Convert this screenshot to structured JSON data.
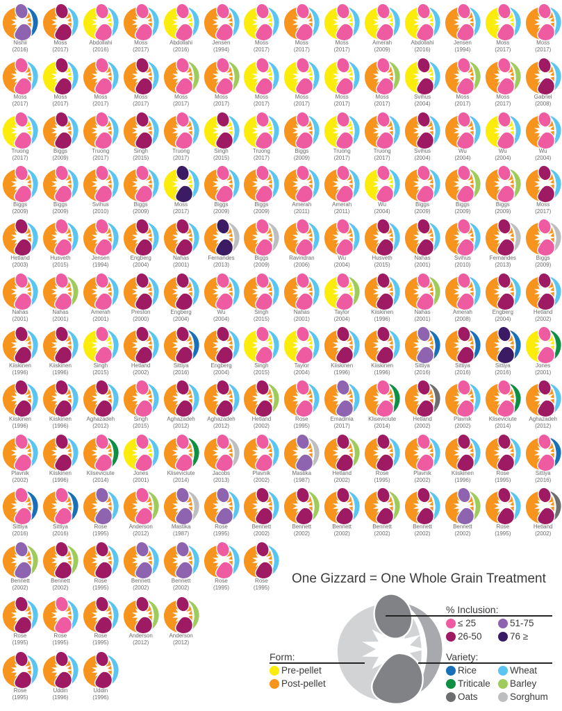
{
  "chart_data": {
    "type": "table",
    "title": "One Gizzard = One Whole Grain Treatment",
    "encoding": {
      "form": {
        "P": "Post-pellet",
        "R": "Pre-pellet"
      },
      "inclusion": {
        "1": "≤ 25",
        "2": "26-50",
        "3": "51-75",
        "4": "76 ≥"
      },
      "variety": {
        "w": "Wheat",
        "b": "Barley",
        "r": "Rice",
        "t": "Triticale",
        "o": "Oats",
        "s": "Sorghum"
      }
    },
    "rows": [
      [
        "Nishii|2016|P3r",
        "Moss|2017|P2w",
        "Abdollahi|2016|R1w",
        "Moss|2017|P1w",
        "Abdollahi|2016|R1w",
        "Jensen|1994|P1w",
        "Moss|2017|R1w",
        "Moss|2017|P1w",
        "Moss|2017|R1w",
        "Amerah|2009|R1w",
        "Abdollahi|2016|R1w",
        "Jensen|1994|P1w",
        "Moss|2017|R1w",
        "Moss|2017|P1w"
      ],
      [
        "Moss|2017|P1w",
        "Moss|2017|R2w",
        "Moss|2017|P1w",
        "Moss|2017|P2w",
        "Moss|2017|P1b",
        "Moss|2017|P1b",
        "Moss|2017|R1w",
        "Moss|2017|R1w",
        "Moss|2017|R1w",
        "Moss|2017|P1b",
        "Svihus|2004|R2w",
        "Moss|2017|P1b",
        "Moss|2017|P1b",
        "Gabriel|2008|P2w"
      ],
      [
        "Truong|2017|R1w",
        "Biggs|2009|P2w",
        "Truong|2017|P1w",
        "Singh|2015|P2w",
        "Truong|2017|P1w",
        "Singh|2015|R2w",
        "Truong|2017|R1w",
        "Biggs|2009|P1w",
        "Truong|2017|R1w",
        "Truong|2017|P1w",
        "Svihus|2004|P2w",
        "Wu|2004|P1w",
        "Wu|2004|R1w",
        "Wu|2004|P1w"
      ],
      [
        "Biggs|2009|P1w",
        "Biggs|2009|P1w",
        "Svihus|2010|P1w",
        "Biggs|2009|P1w",
        "Moss|2017|R4w",
        "Biggs|2009|P1w",
        "Biggs|2009|P1w",
        "Amerah|2011|P1w",
        "Amerah|2011|P1w",
        "Wu|2004|R1w",
        "Biggs|2009|P1w",
        "Biggs|2009|P1b",
        "Biggs|2009|P1b",
        "Moss|2017|P2w"
      ],
      [
        "Hetland|2003|P2w",
        "Husveth|2015|P1w",
        "Jensen|1994|P1w",
        "Engberg|2004|P2w",
        "Nahas|2001|P2w",
        "Fernandes|2013|P4s",
        "Biggs|2009|P1s",
        "Ravindran|2006|P1w",
        "Wu|2004|P1w",
        "Husveth|2015|P2w",
        "Nahas|2001|P2w",
        "Svihus|2010|P1w",
        "Fernandes|2013|P2s",
        "Biggs|2009|P1s"
      ],
      [
        "Nahas|2001|P1w",
        "Nahas|2001|P1b",
        "Amerah|2001|P1w",
        "Preston|2000|P2w",
        "Engberg|2004|P2w",
        "Wu|2004|P1w",
        "Singh|2015|P1w",
        "Nahas|2001|P1w",
        "Taylor|2004|R1b",
        "Kiiskinen|1996|P2w",
        "Nahas|2001|P1b",
        "Amerah|2008|P1w",
        "Engberg|2004|P2w",
        "Hetland|2002|P2w"
      ],
      [
        "Kiiskinen|1996|P2w",
        "Kiiskinen|1996|P2w",
        "Singh|2015|R1w",
        "Hetland|2002|P2w",
        "Sittiya|2016|P2r",
        "Engberg|2004|P2w",
        "Singh|2015|R1w",
        "Taylor|2004|R1w",
        "Kiiskinen|1996|P2w",
        "Kiiskinen|1996|P2w",
        "Sittiya|2016|P3r",
        "Sittiya|2016|P2r",
        "Sittiya|2016|P4r",
        "Jones|2001|R1t"
      ],
      [
        "Kiiskinen|1996|P2w",
        "Kiiskinen|1996|P2w",
        "Aghazadeh|2012|P2w",
        "Singh|2015|P1w",
        "Aghazadeh|2012|P2w",
        "Aghazadeh|2012|P2w",
        "Hetland|2002|P2b",
        "Rose|1995|P1w",
        "Emadinia|2017|P3w",
        "Kliseviciute|2014|P1t",
        "Hetland|2002|P2o",
        "Plavnik|2002|P1w",
        "Kliseviciute|2014|P1t",
        "Aghazadeh|2012|P2w"
      ],
      [
        "Plavnik|2002|P1w",
        "Kiiskinen|1996|P2w",
        "Kliseviciute|2014|P1t",
        "Jones|2001|R1w",
        "Kliseviciute|2014|P1t",
        "Jacobs|2013|P1s",
        "Plavnik|2002|P1w",
        "Mastika|1987|P3s",
        "Hetland|2002|P2b",
        "Rose|1995|P2w",
        "Plavnik|2002|P1w",
        "Kiiskinen|1996|P2w",
        "Rose|1995|P2w",
        "Sittiya|2016|P1r"
      ],
      [
        "Sittiya|2016|P1r",
        "Sittiya|2016|P1r",
        "Rose|1995|P3w",
        "Anderson|2012|P1b",
        "Mastika|1987|P3s",
        "Rose|1995|P3w",
        "Bennett|2002|P2w",
        "Bennett|2002|P2b",
        "Bennett|2002|P2w",
        "Bennett|2002|P2b",
        "Bennett|2002|P2w",
        "Bennett|2002|P3b",
        "Rose|1995|P2w",
        "Hetland|2002|P2o"
      ],
      [
        "Bennett|2002|P3b",
        "Bennett|2002|P2b",
        "Rose|1995|P2w",
        "Bennett|2002|P3w",
        "Bennett|2002|P3w",
        "Rose|1995|P1w",
        "Rose|1995|P2w"
      ],
      [
        "Rose|1995|P2w",
        "Rose|1995|P1w",
        "Rose|1995|P2w",
        "Anderson|2012|P2b",
        "Anderson|2012|P2b"
      ],
      [
        "Rose|1995|P2w",
        "Uddin|1996|P2w",
        "Uddin|1996|P2w"
      ]
    ],
    "row_tops": [
      2,
      80,
      158,
      235,
      312,
      390,
      467,
      544,
      622,
      699,
      777,
      856,
      935
    ]
  },
  "colors": {
    "form": {
      "R": "#fcec0c",
      "P": "#f7941d"
    },
    "inclusion": {
      "1": "#ef5ba1",
      "2": "#9e1a62",
      "3": "#8e63b0",
      "4": "#3b1c64"
    },
    "variety": {
      "w": "#5bc5f2",
      "b": "#9fcb5b",
      "r": "#1a70b8",
      "t": "#0f8f44",
      "o": "#6d6e70",
      "s": "#bcbec0"
    }
  },
  "legend": {
    "title": "One Gizzard = One Whole Grain Treatment",
    "inclusion_heading": "% Inclusion:",
    "inclusion_items": [
      {
        "label": "≤ 25",
        "key": "1"
      },
      {
        "label": "51-75",
        "key": "3"
      },
      {
        "label": "26-50",
        "key": "2"
      },
      {
        "label": "76 ≥",
        "key": "4"
      }
    ],
    "variety_heading": "Variety:",
    "variety_items": [
      {
        "label": "Rice",
        "key": "r"
      },
      {
        "label": "Wheat",
        "key": "w"
      },
      {
        "label": "Triticale",
        "key": "t"
      },
      {
        "label": "Barley",
        "key": "b"
      },
      {
        "label": "Oats",
        "key": "o"
      },
      {
        "label": "Sorghum",
        "key": "s"
      }
    ],
    "form_heading": "Form:",
    "form_items": [
      {
        "label": "Pre-pellet",
        "key": "R"
      },
      {
        "label": "Post-pellet",
        "key": "P"
      }
    ]
  }
}
